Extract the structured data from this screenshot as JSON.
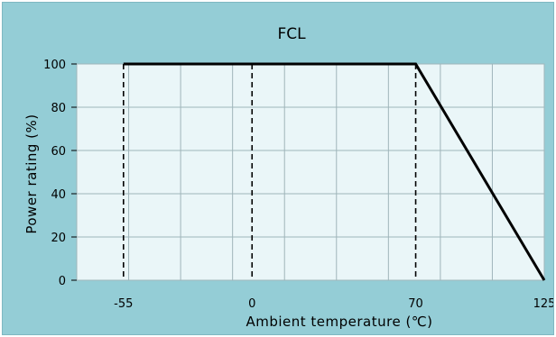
{
  "chart_data": {
    "type": "line",
    "title": "FCL",
    "xlabel": "Ambient temperature (℃)",
    "ylabel": "Power  rating (%)",
    "xlim": [
      -75,
      125
    ],
    "ylim": [
      0,
      100
    ],
    "x_ticks": [
      -55,
      0,
      70,
      125
    ],
    "x_tick_labels": [
      "-55",
      "0",
      "70",
      "125"
    ],
    "y_ticks": [
      0,
      20,
      40,
      60,
      80,
      100
    ],
    "y_tick_labels": [
      "0",
      "20",
      "40",
      "60",
      "80",
      "100"
    ],
    "grid": true,
    "series": [
      {
        "x": [
          -55,
          70,
          125
        ],
        "y": [
          100,
          100,
          0
        ],
        "color": "#000000"
      }
    ],
    "reference_lines": [
      {
        "x": -55,
        "y_from": 0,
        "y_to": 100,
        "style": "dashed"
      },
      {
        "x": 0,
        "y_from": 0,
        "y_to": 100,
        "style": "dashed"
      },
      {
        "x": 70,
        "y_from": 0,
        "y_to": 100,
        "style": "dashed"
      }
    ],
    "colors": {
      "frame_background": "#94CDD6",
      "plot_background": "#EAF6F8",
      "grid": "#9fb5ba",
      "line": "#000000"
    }
  }
}
